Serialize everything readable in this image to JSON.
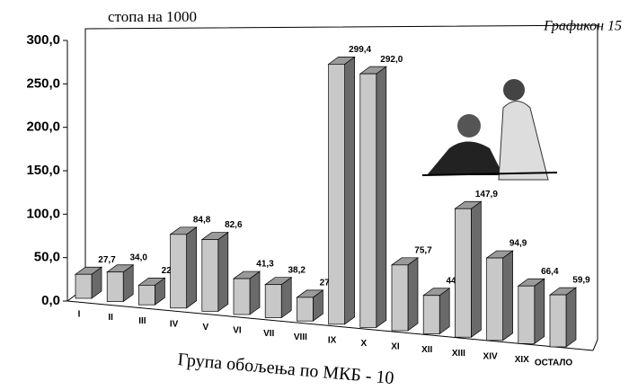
{
  "chart_data": {
    "type": "bar3d",
    "title": "Графикон 15",
    "y_label": "стопа на 1000",
    "x_label": "Група обољења по МКБ - 10",
    "categories": [
      "I",
      "II",
      "III",
      "IV",
      "V",
      "VI",
      "VII",
      "VIII",
      "IX",
      "X",
      "XI",
      "XII",
      "XIII",
      "XIV",
      "XIX",
      "ОСТАЛО"
    ],
    "values": [
      27.7,
      34.0,
      22.6,
      84.8,
      82.6,
      41.3,
      38.2,
      27.2,
      299.4,
      292.0,
      75.7,
      44.3,
      147.9,
      94.9,
      66.4,
      59.9
    ],
    "value_labels": [
      "27,7",
      "34,0",
      "22,6",
      "84,8",
      "82,6",
      "41,3",
      "38,2",
      "27,2",
      "299,4",
      "292,0",
      "75,7",
      "44,3",
      "147,9",
      "94,9",
      "66,4",
      "59,9"
    ],
    "color": "#c8c8c8",
    "ylim": [
      0,
      300
    ],
    "yticks": [
      {
        "value": 0,
        "label": "0,0"
      },
      {
        "value": 50,
        "label": "50,0"
      },
      {
        "value": 100,
        "label": "100,0"
      },
      {
        "value": 150,
        "label": "150,0"
      },
      {
        "value": 200,
        "label": "200,0"
      },
      {
        "value": 250,
        "label": "250,0"
      },
      {
        "value": 300,
        "label": "300,0"
      }
    ]
  }
}
